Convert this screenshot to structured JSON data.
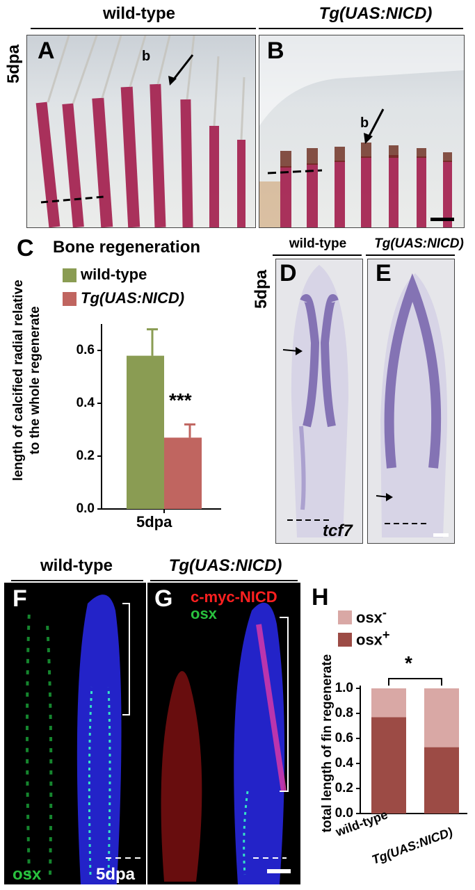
{
  "top_row": {
    "wt_header": "wild-type",
    "tg_header": "Tg(UAS:NICD)",
    "stage": "5dpa",
    "panel_a": "A",
    "panel_b": "B",
    "mark_a": "b",
    "mark_b": "b"
  },
  "panel_c": {
    "letter": "C",
    "title": "Bone regeneration",
    "legend": [
      {
        "label": "wild-type",
        "color": "#8a9c53"
      },
      {
        "label": "Tg(UAS:NICD)",
        "color": "#c06560"
      }
    ],
    "ylabel_line1": "length of calcified radial relative",
    "ylabel_line2": "to the whole regenerate",
    "significance": "***"
  },
  "panel_de": {
    "wt_header": "wild-type",
    "tg_header": "Tg(UAS:NICD)",
    "stage": "5dpa",
    "panel_d": "D",
    "panel_e": "E",
    "gene": "tcf7"
  },
  "bottom_row": {
    "wt_header": "wild-type",
    "tg_header": "Tg(UAS:NICD)",
    "panel_f": "F",
    "panel_g": "G",
    "panel_h": "H",
    "osx_label": "osx",
    "stage": "5dpa",
    "nicd_label": "c-myc-NICD",
    "osx_label_g": "osx"
  },
  "panel_h": {
    "legend": [
      {
        "label": "osx",
        "sup": "-",
        "color": "#d9a8a5"
      },
      {
        "label": "osx",
        "sup": "+",
        "color": "#9c4b45"
      }
    ],
    "ylabel": "total length of fin regenerate",
    "significance": "*"
  },
  "chart_data": [
    {
      "type": "bar",
      "title": "Bone regeneration",
      "categories": [
        "5dpa"
      ],
      "series": [
        {
          "name": "wild-type",
          "values": [
            0.58
          ],
          "error": [
            0.1
          ],
          "color": "#8a9c53"
        },
        {
          "name": "Tg(UAS:NICD)",
          "values": [
            0.27
          ],
          "error": [
            0.05
          ],
          "color": "#c06560"
        }
      ],
      "xlabel": "",
      "ylabel": "length of calcified radial relative to the whole regenerate",
      "ylim": [
        0,
        0.7
      ],
      "yticks": [
        "0.0",
        "0.2",
        "0.4",
        "0.6"
      ],
      "grid": false,
      "legend": "top-left"
    },
    {
      "type": "bar",
      "stacked": true,
      "categories": [
        "wild-type",
        "Tg(UAS:NICD)"
      ],
      "series": [
        {
          "name": "osx+",
          "values": [
            0.77,
            0.53
          ],
          "color": "#9c4b45"
        },
        {
          "name": "osx-",
          "values": [
            0.23,
            0.47
          ],
          "color": "#d9a8a5"
        }
      ],
      "ylabel": "total length of fin regenerate",
      "ylim": [
        0,
        1.0
      ],
      "yticks": [
        "0.0",
        "0.2",
        "0.4",
        "0.6",
        "0.8",
        "1.0"
      ],
      "grid": false,
      "legend": "top"
    }
  ]
}
